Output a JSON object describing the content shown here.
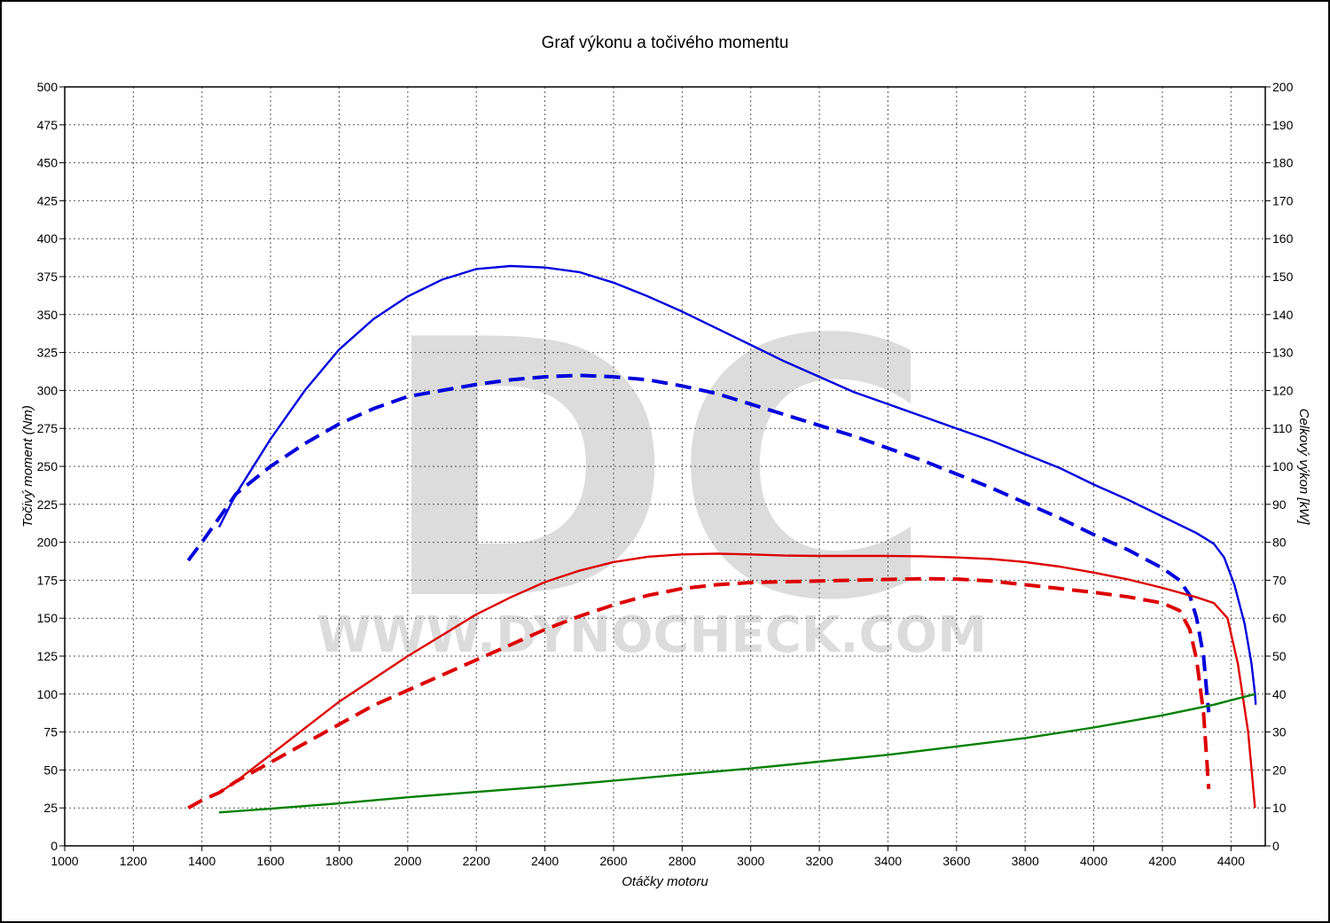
{
  "chart_data": {
    "type": "line",
    "title": "Graf výkonu a točivého momentu",
    "xlabel": "Otáčky motoru",
    "ylabel_left": "Točivý moment (Nm)",
    "ylabel_right": "Celkový výkon [kW]",
    "watermark": {
      "logo": "DC",
      "text": "WWW.DYNOCHECK.COM"
    },
    "xlim": [
      1000,
      4500
    ],
    "ylim_left": [
      0,
      500
    ],
    "ylim_right": [
      0,
      200
    ],
    "x_ticks": [
      "1000",
      "1200",
      "1400",
      "1600",
      "1800",
      "2000",
      "2200",
      "2400",
      "2600",
      "2800",
      "3000",
      "3200",
      "3400",
      "3600",
      "3800",
      "4000",
      "4200",
      "4400"
    ],
    "y_ticks_left": [
      "0",
      "25",
      "50",
      "75",
      "100",
      "125",
      "150",
      "175",
      "200",
      "225",
      "250",
      "275",
      "300",
      "325",
      "350",
      "375",
      "400",
      "425",
      "450",
      "475",
      "500"
    ],
    "y_ticks_right": [
      "0",
      "10",
      "20",
      "30",
      "40",
      "50",
      "60",
      "70",
      "80",
      "90",
      "100",
      "110",
      "120",
      "130",
      "140",
      "150",
      "160",
      "170",
      "180",
      "190",
      "200"
    ],
    "grid": true,
    "series": [
      {
        "color": "#0000dd",
        "dash": false,
        "axis": "left",
        "points": [
          [
            1450,
            210
          ],
          [
            1500,
            232
          ],
          [
            1600,
            268
          ],
          [
            1700,
            300
          ],
          [
            1800,
            327
          ],
          [
            1900,
            347
          ],
          [
            2000,
            362
          ],
          [
            2100,
            373
          ],
          [
            2200,
            380
          ],
          [
            2300,
            382
          ],
          [
            2400,
            381
          ],
          [
            2500,
            378
          ],
          [
            2600,
            371
          ],
          [
            2700,
            362
          ],
          [
            2800,
            352
          ],
          [
            2900,
            341
          ],
          [
            3000,
            330
          ],
          [
            3100,
            319
          ],
          [
            3200,
            309
          ],
          [
            3300,
            299
          ],
          [
            3400,
            291
          ],
          [
            3500,
            283
          ],
          [
            3600,
            275
          ],
          [
            3700,
            267
          ],
          [
            3800,
            258
          ],
          [
            3900,
            249
          ],
          [
            4000,
            238
          ],
          [
            4100,
            228
          ],
          [
            4200,
            217
          ],
          [
            4300,
            206
          ],
          [
            4350,
            199
          ],
          [
            4380,
            190
          ],
          [
            4410,
            172
          ],
          [
            4440,
            146
          ],
          [
            4460,
            120
          ],
          [
            4470,
            100
          ],
          [
            4472,
            93
          ]
        ]
      },
      {
        "color": "#0000dd",
        "dash": true,
        "axis": "left",
        "points": [
          [
            1360,
            188
          ],
          [
            1400,
            200
          ],
          [
            1450,
            216
          ],
          [
            1500,
            232
          ],
          [
            1600,
            250
          ],
          [
            1700,
            265
          ],
          [
            1800,
            278
          ],
          [
            1900,
            288
          ],
          [
            2000,
            296
          ],
          [
            2100,
            300
          ],
          [
            2200,
            304
          ],
          [
            2300,
            307
          ],
          [
            2400,
            309
          ],
          [
            2500,
            310
          ],
          [
            2600,
            309
          ],
          [
            2700,
            307
          ],
          [
            2800,
            303
          ],
          [
            2900,
            298
          ],
          [
            3000,
            291
          ],
          [
            3100,
            284
          ],
          [
            3200,
            277
          ],
          [
            3300,
            270
          ],
          [
            3400,
            262
          ],
          [
            3500,
            254
          ],
          [
            3600,
            245
          ],
          [
            3700,
            236
          ],
          [
            3800,
            226
          ],
          [
            3900,
            216
          ],
          [
            4000,
            205
          ],
          [
            4100,
            195
          ],
          [
            4200,
            183
          ],
          [
            4250,
            175
          ],
          [
            4280,
            165
          ],
          [
            4300,
            150
          ],
          [
            4320,
            125
          ],
          [
            4330,
            100
          ],
          [
            4335,
            88
          ]
        ]
      },
      {
        "color": "#dd0000",
        "dash": false,
        "axis": "right",
        "points": [
          [
            1450,
            14
          ],
          [
            1500,
            17
          ],
          [
            1600,
            24
          ],
          [
            1700,
            31
          ],
          [
            1800,
            38
          ],
          [
            1900,
            44
          ],
          [
            2000,
            50
          ],
          [
            2100,
            55.5
          ],
          [
            2200,
            61
          ],
          [
            2300,
            65.5
          ],
          [
            2400,
            69.5
          ],
          [
            2500,
            72.5
          ],
          [
            2600,
            74.8
          ],
          [
            2700,
            76.2
          ],
          [
            2800,
            76.8
          ],
          [
            2900,
            77
          ],
          [
            3000,
            76.8
          ],
          [
            3100,
            76.5
          ],
          [
            3200,
            76.4
          ],
          [
            3300,
            76.4
          ],
          [
            3400,
            76.4
          ],
          [
            3500,
            76.3
          ],
          [
            3600,
            76
          ],
          [
            3700,
            75.6
          ],
          [
            3800,
            74.8
          ],
          [
            3900,
            73.6
          ],
          [
            4000,
            72
          ],
          [
            4100,
            70.2
          ],
          [
            4200,
            68
          ],
          [
            4300,
            65.5
          ],
          [
            4350,
            64
          ],
          [
            4390,
            60
          ],
          [
            4420,
            48
          ],
          [
            4450,
            30
          ],
          [
            4465,
            15
          ],
          [
            4470,
            10
          ]
        ]
      },
      {
        "color": "#dd0000",
        "dash": true,
        "axis": "right",
        "points": [
          [
            1360,
            10
          ],
          [
            1400,
            12
          ],
          [
            1450,
            14
          ],
          [
            1500,
            17
          ],
          [
            1600,
            22
          ],
          [
            1700,
            27
          ],
          [
            1800,
            32
          ],
          [
            1900,
            37
          ],
          [
            2000,
            41
          ],
          [
            2100,
            45
          ],
          [
            2200,
            49
          ],
          [
            2300,
            53
          ],
          [
            2400,
            57
          ],
          [
            2500,
            60.5
          ],
          [
            2600,
            63.5
          ],
          [
            2700,
            66
          ],
          [
            2800,
            67.8
          ],
          [
            2900,
            68.8
          ],
          [
            3000,
            69.4
          ],
          [
            3100,
            69.6
          ],
          [
            3200,
            69.8
          ],
          [
            3300,
            70
          ],
          [
            3400,
            70.2
          ],
          [
            3500,
            70.4
          ],
          [
            3600,
            70.3
          ],
          [
            3700,
            69.8
          ],
          [
            3800,
            68.8
          ],
          [
            3900,
            67.8
          ],
          [
            4000,
            66.8
          ],
          [
            4100,
            65.6
          ],
          [
            4200,
            64
          ],
          [
            4250,
            62
          ],
          [
            4280,
            57
          ],
          [
            4300,
            49
          ],
          [
            4320,
            35
          ],
          [
            4330,
            22
          ],
          [
            4335,
            15
          ]
        ]
      },
      {
        "color": "#008000",
        "dash": false,
        "axis": "left",
        "points": [
          [
            1450,
            22
          ],
          [
            1600,
            24.5
          ],
          [
            1800,
            28
          ],
          [
            2000,
            32
          ],
          [
            2200,
            35.5
          ],
          [
            2400,
            39
          ],
          [
            2600,
            43
          ],
          [
            2800,
            47
          ],
          [
            3000,
            51
          ],
          [
            3200,
            55.5
          ],
          [
            3400,
            60
          ],
          [
            3600,
            65.5
          ],
          [
            3800,
            71
          ],
          [
            4000,
            78
          ],
          [
            4200,
            86
          ],
          [
            4350,
            93
          ],
          [
            4470,
            100
          ]
        ]
      }
    ]
  }
}
